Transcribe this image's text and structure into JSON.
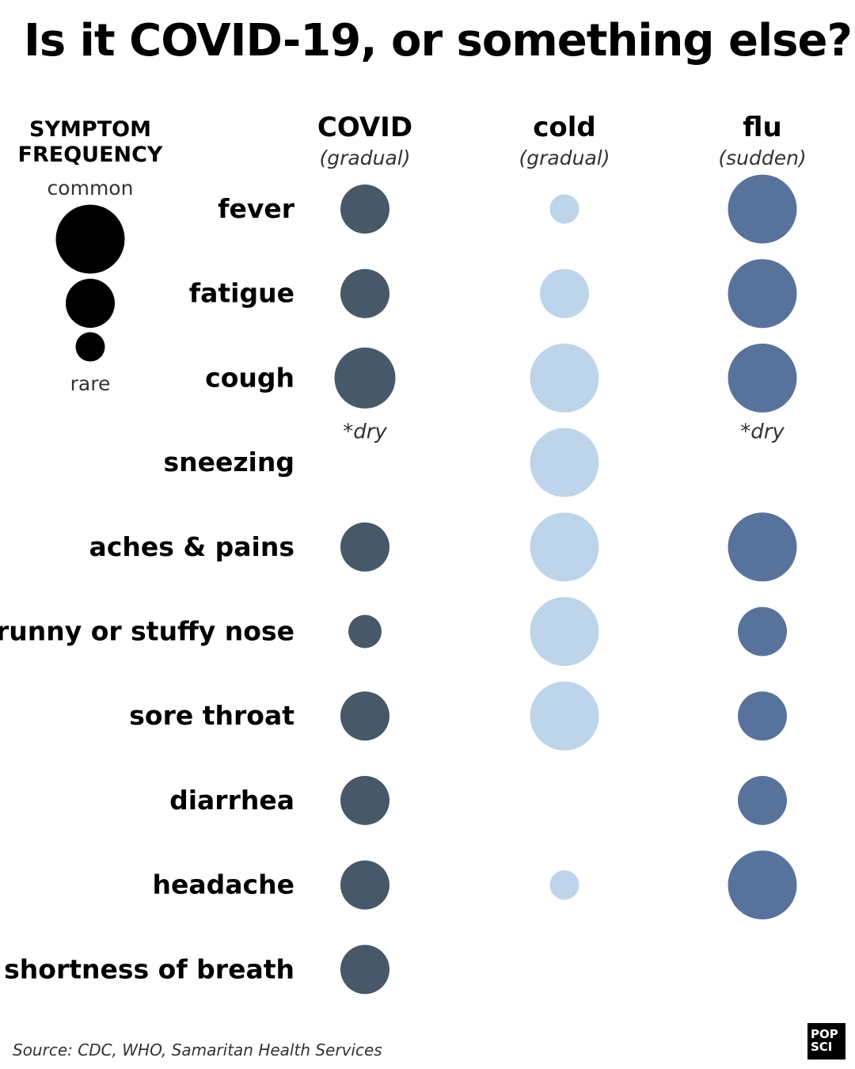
{
  "title": "Is it COVID-19, or something else?",
  "legend": {
    "heading_line1": "SYMPTOM",
    "heading_line2": "FREQUENCY",
    "top_caption": "common",
    "bottom_caption": "rare",
    "levels": [
      3,
      2,
      1
    ]
  },
  "chart_data": {
    "type": "bubble-matrix",
    "title": "Is it COVID-19, or something else?",
    "size_scale": {
      "0": "absent",
      "1": "rare",
      "2": "sometimes",
      "3": "common"
    },
    "columns": [
      {
        "name": "COVID",
        "onset": "(gradual)",
        "color": "#475869"
      },
      {
        "name": "cold",
        "onset": "(gradual)",
        "color": "#bdd4ea"
      },
      {
        "name": "flu",
        "onset": "(sudden)",
        "color": "#58739b"
      }
    ],
    "symptoms": [
      {
        "label": "fever",
        "values": [
          2,
          1,
          3
        ]
      },
      {
        "label": "fatigue",
        "values": [
          2,
          2,
          3
        ]
      },
      {
        "label": "cough",
        "values": [
          2.6,
          3,
          3
        ],
        "notes": [
          "*dry",
          "",
          "*dry"
        ]
      },
      {
        "label": "sneezing",
        "values": [
          0,
          3,
          0
        ]
      },
      {
        "label": "aches & pains",
        "values": [
          2,
          3,
          3
        ]
      },
      {
        "label": "runny or stuffy nose",
        "values": [
          1.2,
          3,
          2
        ]
      },
      {
        "label": "sore throat",
        "values": [
          2,
          3,
          2
        ]
      },
      {
        "label": "diarrhea",
        "values": [
          2,
          0,
          2
        ]
      },
      {
        "label": "headache",
        "values": [
          2,
          1,
          3
        ]
      },
      {
        "label": "shortness of breath",
        "values": [
          2,
          0,
          0
        ]
      }
    ]
  },
  "source": "Source: CDC, WHO, Samaritan Health Services",
  "logo": {
    "line1": "POP",
    "line2": "SCI"
  }
}
